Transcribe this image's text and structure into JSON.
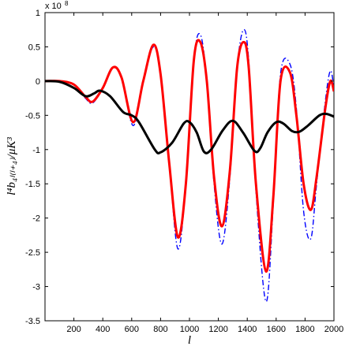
{
  "chart_data": {
    "type": "line",
    "xlabel": "l",
    "ylabel": "l⁴b₄ₗ₍ₗ₊₄₎/μK³",
    "y_multiplier_label": "x 10",
    "y_multiplier_exp": "8",
    "xlim": [
      0,
      2000
    ],
    "ylim": [
      -3.5,
      1
    ],
    "x_ticks": [
      200,
      400,
      600,
      800,
      1000,
      1200,
      1400,
      1600,
      1800,
      2000
    ],
    "y_ticks": [
      -3.5,
      -3,
      -2.5,
      -2,
      -1.5,
      -1,
      -0.5,
      0,
      0.5,
      1
    ],
    "x_tick_labels": [
      "200",
      "400",
      "600",
      "800",
      "1000",
      "1200",
      "1400",
      "1600",
      "1800",
      "2000"
    ],
    "y_tick_labels": [
      "-3.5",
      "-3",
      "-2.5",
      "-2",
      "-1.5",
      "-1",
      "-0.5",
      "0",
      "0.5",
      "1"
    ],
    "grid": false,
    "series": [
      {
        "color": "#0000ff",
        "style": "dash-dot",
        "points": [
          [
            0,
            0
          ],
          [
            100,
            0
          ],
          [
            200,
            -0.05
          ],
          [
            280,
            -0.25
          ],
          [
            330,
            -0.32
          ],
          [
            400,
            -0.1
          ],
          [
            470,
            0.2
          ],
          [
            530,
            0.05
          ],
          [
            610,
            -0.65
          ],
          [
            680,
            0.0
          ],
          [
            750,
            0.5
          ],
          [
            800,
            0.1
          ],
          [
            860,
            -1.2
          ],
          [
            920,
            -2.45
          ],
          [
            975,
            -1.5
          ],
          [
            1030,
            0.3
          ],
          [
            1075,
            0.68
          ],
          [
            1120,
            0.0
          ],
          [
            1170,
            -1.5
          ],
          [
            1225,
            -2.38
          ],
          [
            1280,
            -1.4
          ],
          [
            1330,
            0.2
          ],
          [
            1375,
            0.75
          ],
          [
            1410,
            0.3
          ],
          [
            1460,
            -1.6
          ],
          [
            1530,
            -3.22
          ],
          [
            1580,
            -1.8
          ],
          [
            1630,
            0.1
          ],
          [
            1695,
            0.25
          ],
          [
            1740,
            -0.4
          ],
          [
            1790,
            -1.9
          ],
          [
            1840,
            -2.3
          ],
          [
            1880,
            -1.5
          ],
          [
            1940,
            -0.3
          ],
          [
            1975,
            0.15
          ],
          [
            2000,
            -0.1
          ]
        ]
      },
      {
        "color": "#ff0000",
        "style": "solid",
        "points": [
          [
            0,
            0
          ],
          [
            100,
            0
          ],
          [
            200,
            -0.05
          ],
          [
            280,
            -0.23
          ],
          [
            330,
            -0.3
          ],
          [
            400,
            -0.1
          ],
          [
            470,
            0.2
          ],
          [
            530,
            0.05
          ],
          [
            610,
            -0.6
          ],
          [
            680,
            0.0
          ],
          [
            750,
            0.53
          ],
          [
            800,
            0.1
          ],
          [
            860,
            -1.2
          ],
          [
            920,
            -2.28
          ],
          [
            975,
            -1.5
          ],
          [
            1030,
            0.3
          ],
          [
            1075,
            0.57
          ],
          [
            1120,
            0.0
          ],
          [
            1170,
            -1.4
          ],
          [
            1225,
            -2.12
          ],
          [
            1280,
            -1.3
          ],
          [
            1330,
            0.2
          ],
          [
            1375,
            0.57
          ],
          [
            1410,
            0.2
          ],
          [
            1460,
            -1.5
          ],
          [
            1530,
            -2.78
          ],
          [
            1580,
            -1.7
          ],
          [
            1630,
            0.0
          ],
          [
            1695,
            0.13
          ],
          [
            1740,
            -0.5
          ],
          [
            1790,
            -1.5
          ],
          [
            1840,
            -1.88
          ],
          [
            1880,
            -1.4
          ],
          [
            1940,
            -0.4
          ],
          [
            1975,
            0.0
          ],
          [
            2000,
            -0.15
          ]
        ]
      },
      {
        "color": "#000000",
        "style": "solid",
        "points": [
          [
            0,
            0
          ],
          [
            100,
            -0.01
          ],
          [
            200,
            -0.1
          ],
          [
            280,
            -0.22
          ],
          [
            340,
            -0.18
          ],
          [
            380,
            -0.14
          ],
          [
            450,
            -0.22
          ],
          [
            540,
            -0.45
          ],
          [
            600,
            -0.5
          ],
          [
            650,
            -0.6
          ],
          [
            760,
            -1.0
          ],
          [
            800,
            -1.04
          ],
          [
            880,
            -0.9
          ],
          [
            960,
            -0.62
          ],
          [
            1000,
            -0.6
          ],
          [
            1050,
            -0.75
          ],
          [
            1100,
            -1.03
          ],
          [
            1150,
            -1.0
          ],
          [
            1230,
            -0.72
          ],
          [
            1300,
            -0.58
          ],
          [
            1370,
            -0.75
          ],
          [
            1450,
            -1.02
          ],
          [
            1490,
            -0.98
          ],
          [
            1540,
            -0.75
          ],
          [
            1600,
            -0.6
          ],
          [
            1650,
            -0.62
          ],
          [
            1710,
            -0.73
          ],
          [
            1760,
            -0.74
          ],
          [
            1820,
            -0.65
          ],
          [
            1900,
            -0.5
          ],
          [
            1950,
            -0.48
          ],
          [
            2000,
            -0.52
          ]
        ]
      }
    ]
  }
}
